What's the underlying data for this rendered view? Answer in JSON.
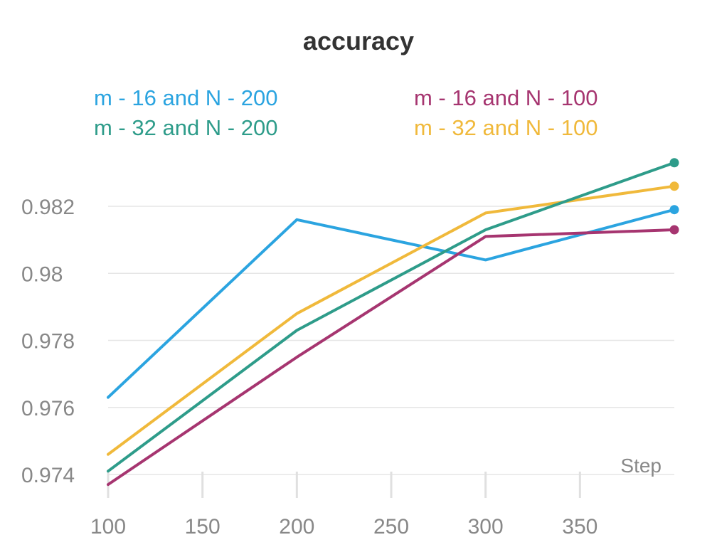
{
  "chart_data": {
    "type": "line",
    "title": "accuracy",
    "xlabel": "Step",
    "ylabel": "",
    "xlim": [
      100,
      400
    ],
    "ylim": [
      0.9737,
      0.9835
    ],
    "x": [
      100,
      200,
      300,
      400
    ],
    "xticks": [
      100,
      150,
      200,
      250,
      300,
      350
    ],
    "xtick_labels": [
      "100",
      "150",
      "200",
      "250",
      "300",
      "350"
    ],
    "yticks": [
      0.974,
      0.976,
      0.978,
      0.98,
      0.982
    ],
    "ytick_labels": [
      "0.974",
      "0.976",
      "0.978",
      "0.98",
      "0.982"
    ],
    "grid": true,
    "legend_position": "top",
    "series": [
      {
        "name": "m - 16 and N - 200",
        "color": "#2ba4e0",
        "values": [
          0.9763,
          0.9816,
          0.9804,
          0.9819
        ]
      },
      {
        "name": "m - 16 and N - 100",
        "color": "#a63570",
        "values": [
          0.9737,
          0.9775,
          0.9811,
          0.9813
        ]
      },
      {
        "name": "m - 32 and N - 200",
        "color": "#2e9c8a",
        "values": [
          0.9741,
          0.9783,
          0.9813,
          0.9833
        ]
      },
      {
        "name": "m - 32 and N - 100",
        "color": "#f0b93b",
        "values": [
          0.9746,
          0.9788,
          0.9818,
          0.9826
        ]
      }
    ]
  }
}
